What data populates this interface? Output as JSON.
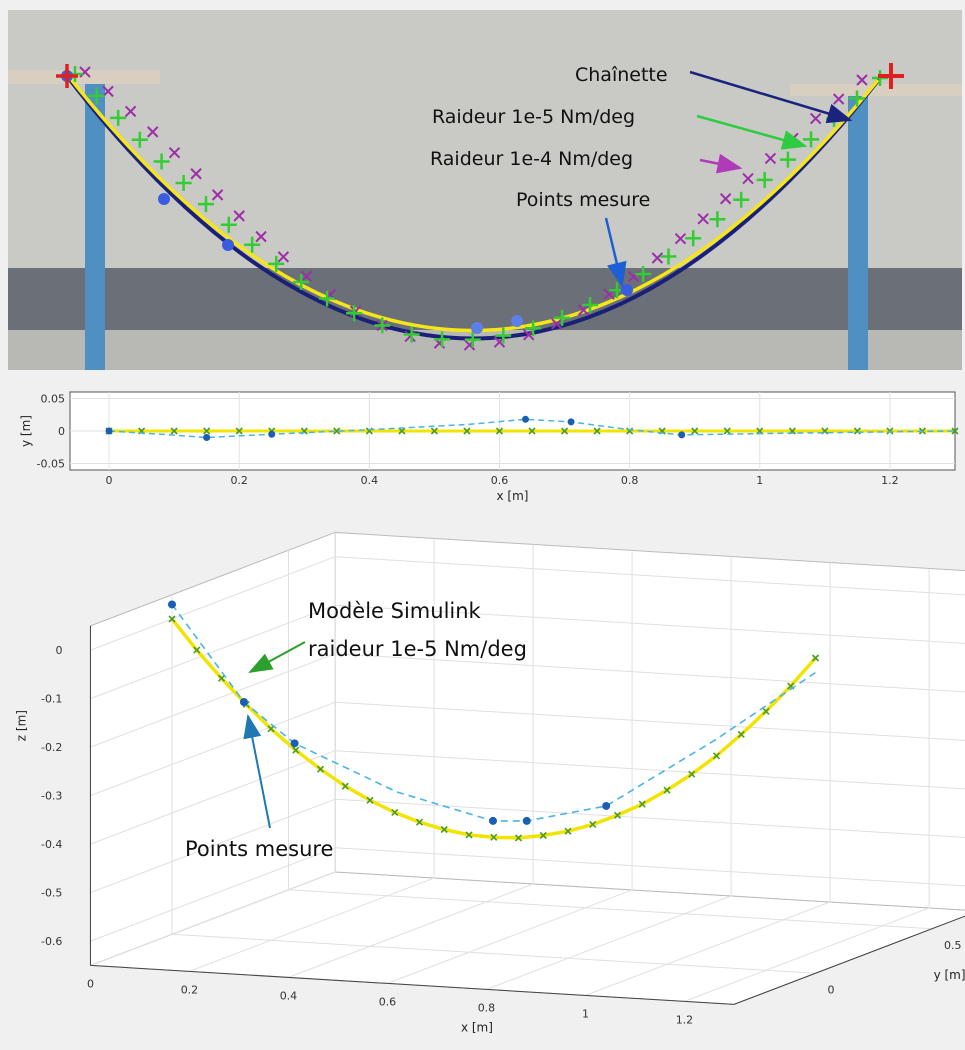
{
  "photo": {
    "annotations": [
      "Chaînette",
      "Raideur 1e-5 Nm/deg",
      "Raideur 1e-4 Nm/deg",
      "Points mesure"
    ]
  },
  "chart_data": [
    {
      "type": "line",
      "xlabel": "x [m]",
      "ylabel": "y [m]",
      "xlim": [
        -0.06,
        1.3
      ],
      "ylim": [
        -0.06,
        0.06
      ],
      "xticks": [
        0,
        0.2,
        0.4,
        0.6,
        0.8,
        1,
        1.2
      ],
      "yticks": [
        -0.05,
        0,
        0.05
      ],
      "grid": true,
      "series": [
        {
          "color": "#f2e400",
          "marker_color": "#4a9a2a",
          "marker": "x",
          "line": "solid",
          "x": [
            0,
            0.05,
            0.1,
            0.15,
            0.2,
            0.25,
            0.3,
            0.35,
            0.4,
            0.45,
            0.5,
            0.55,
            0.6,
            0.65,
            0.7,
            0.75,
            0.8,
            0.85,
            0.9,
            0.95,
            1,
            1.05,
            1.1,
            1.15,
            1.2,
            1.25,
            1.3
          ],
          "values": [
            0,
            0,
            0,
            0,
            0,
            0,
            0,
            0,
            0,
            0,
            0,
            0,
            0,
            0,
            0,
            0,
            0,
            0,
            0,
            0,
            0,
            0,
            0,
            0,
            0,
            0,
            0
          ]
        },
        {
          "color": "#4ab4e6",
          "line": "dashed",
          "x": [
            0,
            0.08,
            0.15,
            0.25,
            0.4,
            0.55,
            0.64,
            0.71,
            0.8,
            0.88,
            1,
            1.15,
            1.3
          ],
          "values": [
            0,
            -0.005,
            -0.01,
            -0.005,
            0.002,
            0.01,
            0.018,
            0.014,
            0.002,
            -0.006,
            -0.004,
            -0.002,
            0
          ]
        },
        {
          "color": "#1a5fb4",
          "marker": "o",
          "line": "none",
          "x": [
            0,
            0.15,
            0.25,
            0.64,
            0.71,
            0.88
          ],
          "values": [
            0,
            -0.01,
            -0.005,
            0.018,
            0.014,
            -0.006
          ]
        }
      ]
    },
    {
      "type": "line3d",
      "xlabel": "x [m]",
      "ylabel": "y [m]",
      "zlabel": "z [m]",
      "xlim": [
        0,
        1.3
      ],
      "ylim": [
        -0.35,
        0.7
      ],
      "zlim": [
        -0.65,
        0.05
      ],
      "xticks": [
        0,
        0.2,
        0.4,
        0.6,
        0.8,
        1,
        1.2
      ],
      "yticks": [
        0,
        0.5
      ],
      "zticks": [
        -0.6,
        -0.5,
        -0.4,
        -0.3,
        -0.2,
        -0.1,
        0
      ],
      "grid": true,
      "annotations": [
        "Modèle Simulink",
        "raideur 1e-5 Nm/deg",
        "Points mesure"
      ],
      "series": [
        {
          "color": "#f2e400",
          "marker_color": "#4a9a2a",
          "marker": "x",
          "line": "solid",
          "x": [
            0,
            0.05,
            0.1,
            0.15,
            0.2,
            0.25,
            0.3,
            0.35,
            0.4,
            0.45,
            0.5,
            0.55,
            0.6,
            0.65,
            0.7,
            0.75,
            0.8,
            0.85,
            0.9,
            0.95,
            1,
            1.05,
            1.1,
            1.15,
            1.2,
            1.25,
            1.3
          ],
          "y": [
            0,
            0,
            0,
            0,
            0,
            0,
            0,
            0,
            0,
            0,
            0,
            0,
            0,
            0,
            0,
            0,
            0,
            0,
            0,
            0,
            0,
            0,
            0,
            0,
            0,
            0,
            0
          ],
          "z": [
            0,
            -0.061,
            -0.116,
            -0.167,
            -0.214,
            -0.255,
            -0.291,
            -0.323,
            -0.349,
            -0.371,
            -0.388,
            -0.4,
            -0.408,
            -0.41,
            -0.408,
            -0.4,
            -0.388,
            -0.371,
            -0.349,
            -0.323,
            -0.291,
            -0.255,
            -0.214,
            -0.167,
            -0.116,
            -0.061,
            0
          ]
        },
        {
          "color": "#4ab4e6",
          "line": "dashed",
          "x": [
            0,
            0.15,
            0.25,
            0.45,
            0.64,
            0.71,
            0.88,
            1.1,
            1.3
          ],
          "y": [
            0,
            -0.01,
            -0.005,
            0.008,
            0.018,
            0.014,
            -0.006,
            -0.003,
            0
          ],
          "z": [
            0.03,
            -0.16,
            -0.24,
            -0.33,
            -0.38,
            -0.375,
            -0.33,
            -0.18,
            -0.03
          ]
        },
        {
          "color": "#1a5fb4",
          "marker": "o",
          "line": "none",
          "x": [
            0,
            0.15,
            0.25,
            0.64,
            0.71,
            0.88
          ],
          "y": [
            0,
            -0.01,
            -0.005,
            0.018,
            0.014,
            -0.006
          ],
          "z": [
            0.03,
            -0.16,
            -0.24,
            -0.38,
            -0.375,
            -0.33
          ]
        }
      ]
    }
  ]
}
